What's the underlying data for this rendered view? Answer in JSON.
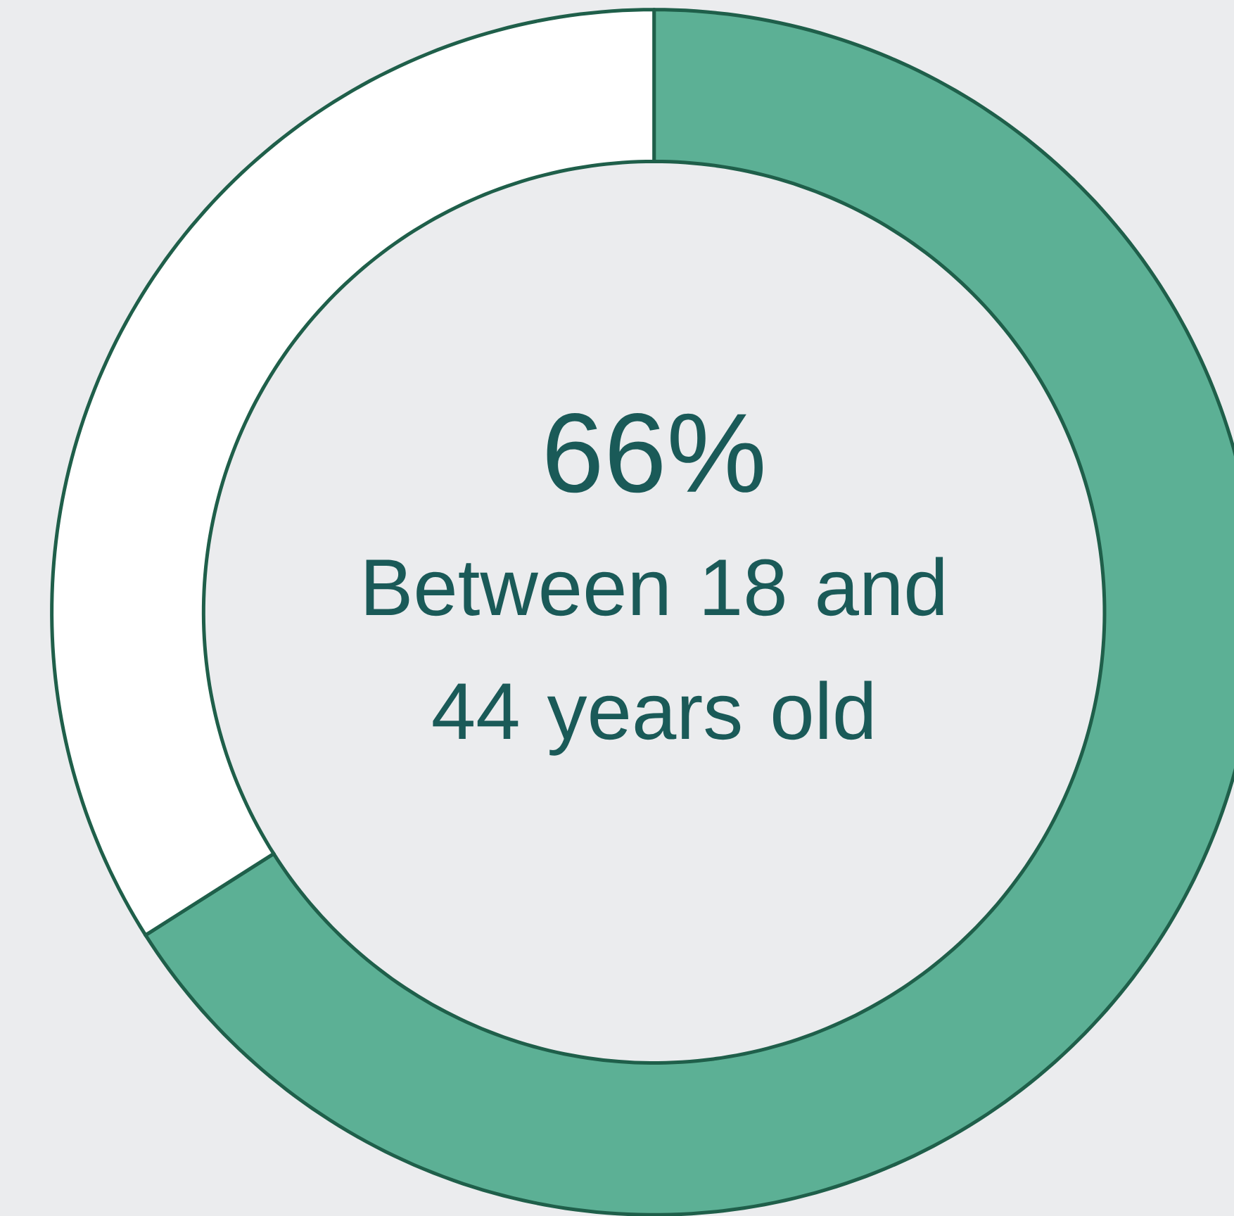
{
  "chart_data": {
    "type": "donut",
    "categories": [
      null,
      null
    ],
    "values": [
      66,
      34
    ],
    "colors": [
      "#5cb095",
      "#ffffff"
    ],
    "value_labels": [
      "66%",
      null
    ],
    "annotations": [
      "Between 18 and 44 years old"
    ]
  }
}
